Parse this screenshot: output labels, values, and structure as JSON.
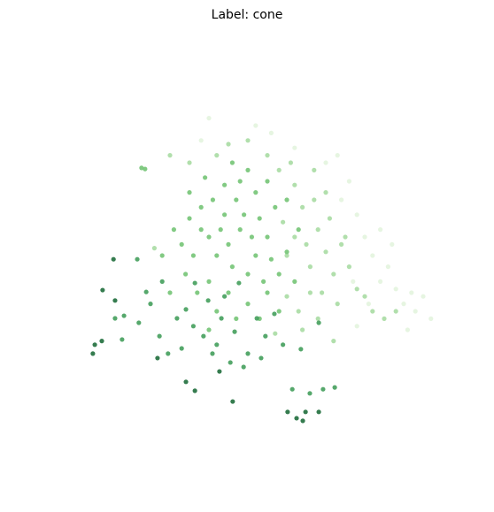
{
  "chart_data": {
    "type": "scatter",
    "title": "Label: cone",
    "xlim": [
      0,
      100
    ],
    "ylim": [
      0,
      100
    ],
    "axis": false,
    "series": [
      {
        "color": "#e3f4de",
        "x": [
          80,
          82,
          78,
          74,
          84,
          88,
          90,
          92,
          95,
          93,
          97,
          91,
          86,
          76,
          70,
          62,
          56,
          52,
          38,
          40,
          77,
          81,
          84,
          87,
          78,
          73
        ],
        "y": [
          60,
          55,
          66,
          70,
          48,
          46,
          42,
          45,
          44,
          40,
          38,
          35,
          52,
          75,
          80,
          84,
          88,
          90,
          86,
          92,
          48,
          42,
          62,
          58,
          36,
          82
        ]
      },
      {
        "color": "#a9dca3",
        "x": [
          60,
          62,
          65,
          66,
          68,
          64,
          62,
          58,
          67,
          70,
          72,
          69,
          66,
          71,
          63,
          60,
          74,
          76,
          73,
          68,
          78,
          80,
          64,
          57,
          59,
          61,
          55,
          70,
          75,
          82,
          85,
          88,
          45,
          50,
          35,
          30,
          72,
          42,
          67,
          26
        ],
        "y": [
          55,
          60,
          58,
          52,
          62,
          68,
          74,
          78,
          70,
          56,
          50,
          45,
          45,
          65,
          40,
          44,
          58,
          52,
          42,
          38,
          46,
          44,
          35,
          34,
          64,
          80,
          82,
          72,
          60,
          40,
          38,
          40,
          85,
          86,
          80,
          82,
          32,
          82,
          78,
          57
        ]
      },
      {
        "color": "#74c476",
        "x": [
          40,
          42,
          45,
          48,
          50,
          52,
          55,
          53,
          47,
          44,
          38,
          36,
          40,
          45,
          50,
          55,
          58,
          60,
          57,
          52,
          48,
          44,
          41,
          35,
          33,
          37,
          42,
          47,
          53,
          58,
          62,
          63,
          60,
          55,
          50,
          46,
          39,
          35,
          31,
          34,
          40,
          30,
          28,
          49,
          51,
          46,
          43,
          56,
          54,
          38,
          22.7,
          23.6
        ],
        "y": [
          60,
          55,
          58,
          62,
          50,
          55,
          60,
          65,
          70,
          66,
          62,
          55,
          48,
          45,
          42,
          45,
          50,
          56,
          68,
          72,
          75,
          74,
          70,
          65,
          58,
          45,
          40,
          38,
          38,
          40,
          48,
          62,
          70,
          75,
          78,
          80,
          76,
          72,
          62,
          50,
          35,
          45,
          55,
          66,
          60,
          52,
          62,
          54,
          48,
          68,
          78.6,
          78.3
        ]
      },
      {
        "color": "#449e5c",
        "x": [
          17.7,
          15.9,
          18.2,
          22,
          23.9,
          21.6,
          27.3,
          29.5,
          33,
          38.6,
          42,
          46.6,
          50,
          54.5,
          59,
          63.6,
          68.2,
          39.8,
          43.2,
          47.7,
          34.1,
          31.8,
          52.3,
          56.8,
          61.4,
          65.9,
          69.3,
          72.3,
          36.4,
          40.9,
          45.5,
          48.9,
          53.4,
          25,
          28,
          44,
          36
        ],
        "y": [
          32.4,
          38.1,
          38.8,
          36.9,
          45.2,
          54,
          33.3,
          28.6,
          30,
          33.3,
          31,
          34.5,
          28.6,
          33.3,
          31,
          29.8,
          36.9,
          42.9,
          38.1,
          47.6,
          40.5,
          38.1,
          38.1,
          39.3,
          19,
          17.9,
          19,
          19.5,
          47.6,
          28.6,
          26.2,
          25,
          27.4,
          42,
          48,
          44,
          36
        ]
      },
      {
        "color": "#1f6e3c",
        "x": [
          10.2,
          10.7,
          12.5,
          15.9,
          15.5,
          12.7,
          46.1,
          36.4,
          60.2,
          62.5,
          64.1,
          64.8,
          68.2,
          26.8,
          34.1,
          42.7
        ],
        "y": [
          28.6,
          31,
          32,
          42.9,
          54,
          45.7,
          15.7,
          18.6,
          12.9,
          11.2,
          10.5,
          12.9,
          12.9,
          27.4,
          21,
          23.8
        ]
      }
    ]
  }
}
